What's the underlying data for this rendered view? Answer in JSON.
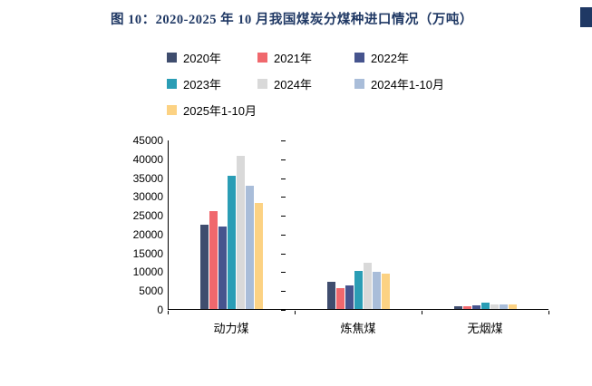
{
  "header": {
    "title": "图 10：2020-2025 年 10 月我国煤炭分煤种进口情况（万吨）",
    "accent_color": "#1f3864"
  },
  "chart_data": {
    "type": "bar",
    "title": "图 10：2020-2025 年 10 月我国煤炭分煤种进口情况（万吨）",
    "categories": [
      "动力煤",
      "炼焦煤",
      "无烟煤"
    ],
    "series": [
      {
        "name": "2020年",
        "color": "#3f4d6e",
        "values": [
          22400,
          7200,
          700
        ]
      },
      {
        "name": "2021年",
        "color": "#f0686d",
        "values": [
          26100,
          5500,
          800
        ]
      },
      {
        "name": "2022年",
        "color": "#46548e",
        "values": [
          21900,
          6300,
          1000
        ]
      },
      {
        "name": "2023年",
        "color": "#2a9db5",
        "values": [
          35400,
          10100,
          1700
        ]
      },
      {
        "name": "2024年",
        "color": "#d9d9d9",
        "values": [
          40700,
          12300,
          1300
        ]
      },
      {
        "name": "2024年1-10月",
        "color": "#a9bdd9",
        "values": [
          32700,
          9900,
          1200
        ]
      },
      {
        "name": "2025年1-10月",
        "color": "#fcd283",
        "values": [
          28100,
          9400,
          1100
        ]
      }
    ],
    "ylim": [
      0,
      45000
    ],
    "yticks": [
      0,
      5000,
      10000,
      15000,
      20000,
      25000,
      30000,
      35000,
      40000,
      45000
    ],
    "xlabel": "",
    "ylabel": "",
    "legend_position": "top-left",
    "grid": false
  }
}
